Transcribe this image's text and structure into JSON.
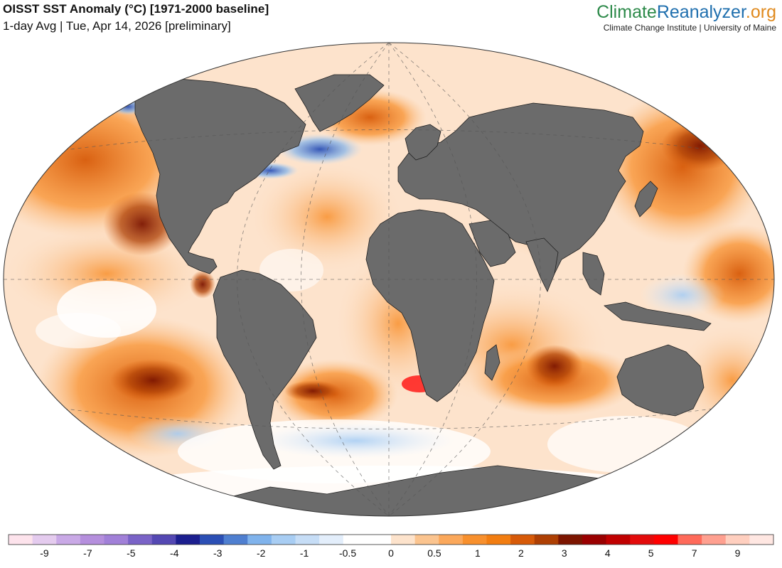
{
  "header": {
    "title": "OISST SST Anomaly (°C) [1971-2000 baseline]",
    "subtitle": "1-day Avg | Tue, Apr 14, 2026 [preliminary]"
  },
  "brand": {
    "logo_part1": "Climate",
    "logo_part2": "Reanalyzer",
    "logo_part3": ".org",
    "tagline": "Climate Change Institute | University of Maine",
    "colors": {
      "climate": "#2d8a4a",
      "reanalyzer": "#1f6fae",
      "org": "#e08a1e"
    }
  },
  "map": {
    "projection": "Winkel Tripel",
    "land_color": "#6b6b6b",
    "ocean_neutral": "#ffffff"
  },
  "colorbar": {
    "tick_labels": [
      "-9",
      "-7",
      "-5",
      "-4",
      "-3",
      "-2",
      "-1",
      "-0.5",
      "0",
      "0.5",
      "1",
      "2",
      "3",
      "4",
      "5",
      "7",
      "9"
    ],
    "colors": [
      "#fde3ec",
      "#e4cbee",
      "#c9a9e6",
      "#b58fdd",
      "#a180d8",
      "#7a63c7",
      "#5448b3",
      "#1c1f8f",
      "#2b4fb5",
      "#4f7fd0",
      "#80b3ec",
      "#a8cdf3",
      "#c6ddf6",
      "#e3eefb",
      "#ffffff",
      "#ffffff",
      "#fde3cc",
      "#fbc48f",
      "#fba85b",
      "#f8902d",
      "#f27d11",
      "#d75a08",
      "#ae3f03",
      "#7c1500",
      "#9a0000",
      "#c00000",
      "#e30b0b",
      "#ff0000",
      "#ff6a5a",
      "#ffa090",
      "#ffcfbf",
      "#ffe7e2"
    ]
  }
}
